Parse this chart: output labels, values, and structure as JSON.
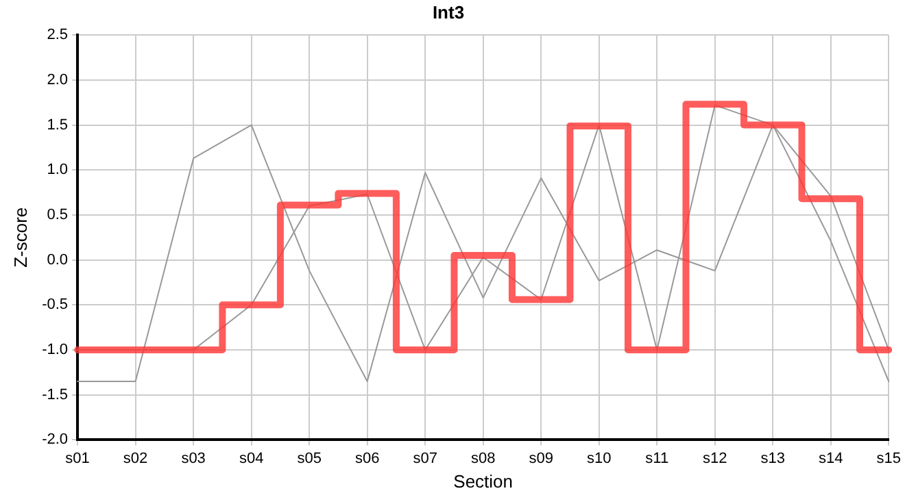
{
  "chart_data": {
    "type": "line",
    "title": "Int3",
    "xlabel": "Section",
    "ylabel": "Z-score",
    "categories": [
      "s01",
      "s02",
      "s03",
      "s04",
      "s05",
      "s06",
      "s07",
      "s08",
      "s09",
      "s10",
      "s11",
      "s12",
      "s13",
      "s14",
      "s15"
    ],
    "series": [
      {
        "type": "line",
        "color": "#999999",
        "values": [
          -1.35,
          -1.35,
          1.13,
          1.5,
          -0.12,
          -1.35,
          0.97,
          -0.42,
          0.91,
          -0.23,
          0.11,
          -0.12,
          1.5,
          0.21,
          -1.35
        ]
      },
      {
        "type": "line",
        "color": "#999999",
        "values": [
          -1,
          -1,
          -1,
          -0.5,
          0.6,
          0.73,
          -1,
          0.03,
          -0.44,
          1.5,
          -1,
          1.72,
          1.5,
          0.71,
          -1
        ]
      },
      {
        "type": "step",
        "color": "#ff3333",
        "values": [
          -1,
          -1,
          -1,
          -0.5,
          0.61,
          0.74,
          -1,
          0.05,
          -0.44,
          1.49,
          -1,
          1.73,
          1.5,
          0.68,
          -1
        ]
      }
    ],
    "ylim": [
      -2,
      2.5
    ],
    "yticks": [
      {
        "value": -2,
        "label": "-2.0"
      },
      -1.5,
      {
        "value": -1,
        "label": "-1.0"
      },
      -0.5,
      {
        "value": 0,
        "label": "0.0"
      },
      0.5,
      {
        "value": 1,
        "label": "1.0"
      },
      1.5,
      {
        "value": 2,
        "label": "2.0"
      },
      2.5
    ],
    "grid": true,
    "legend": false,
    "marker": "none",
    "line_style": "solid"
  }
}
